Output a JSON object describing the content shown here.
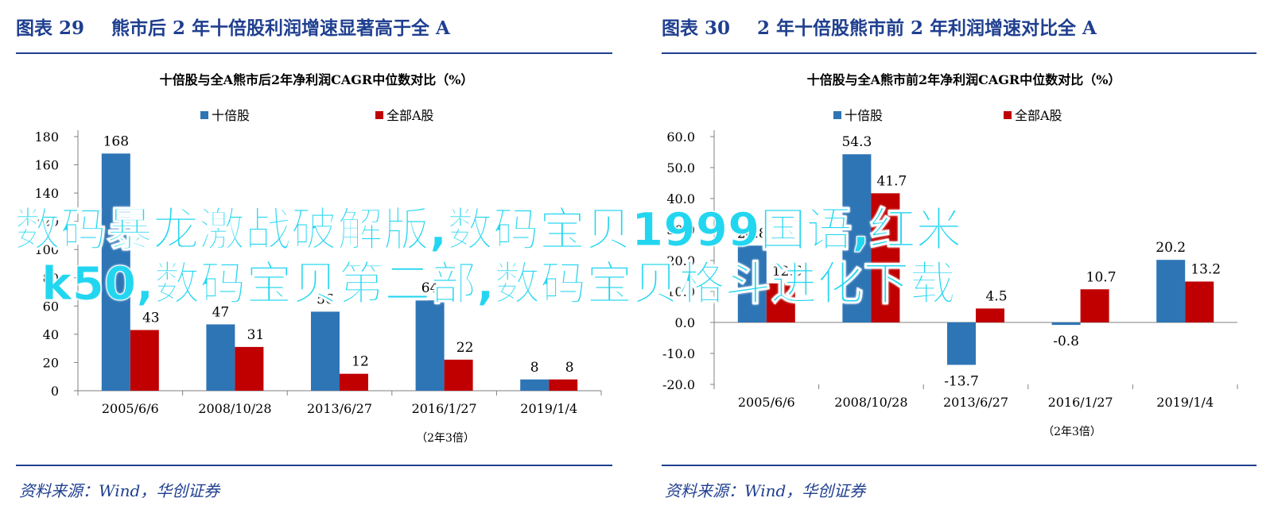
{
  "left": {
    "figure_num": "图表 29",
    "figure_title": "熊市后 2 年十倍股利润增速显著高于全 A",
    "source": "资料来源：Wind，华创证券"
  },
  "right": {
    "figure_num": "图表 30",
    "figure_title": "2 年十倍股熊市前 2 年利润增速对比全 A",
    "source": "资料来源：Wind，华创证券"
  },
  "overlay": {
    "line1": "数码暴龙激战破解版,数码宝贝1999国语,红米",
    "line2": "k50,数码宝贝第二部,数码宝贝格斗进化下载"
  },
  "colors": {
    "series1": "#2e75b6",
    "series2": "#c00000",
    "accent": "#1f3f8f",
    "overlay": "#23d6f0"
  },
  "chart_data": [
    {
      "type": "bar",
      "title": "十倍股与全A熊市后2年净利润CAGR中位数对比（%）",
      "categories": [
        "2005/6/6",
        "2008/10/28",
        "2013/6/27",
        "2016/1/27",
        "2019/1/4"
      ],
      "series": [
        {
          "name": "十倍股",
          "values": [
            168,
            47,
            56,
            64,
            8
          ],
          "labels": [
            "168",
            "47",
            "56",
            "64",
            "8"
          ]
        },
        {
          "name": "全部A股",
          "values": [
            43,
            31,
            12,
            22,
            8
          ],
          "labels": [
            "43",
            "31",
            "12",
            "22",
            "8"
          ]
        }
      ],
      "yticks": [
        "0",
        "20",
        "40",
        "60",
        "80",
        "100",
        "120",
        "140",
        "160",
        "180"
      ],
      "ylim": [
        0,
        180
      ],
      "note": "（2年3倍）",
      "legend": "top-center",
      "grid": false
    },
    {
      "type": "bar",
      "title": "十倍股与全A熊市前2年净利润CAGR中位数对比（%）",
      "categories": [
        "2005/6/6",
        "2008/10/28",
        "2013/6/27",
        "2016/1/27",
        "2019/1/4"
      ],
      "series": [
        {
          "name": "十倍股",
          "values": [
            24.8,
            54.3,
            -13.7,
            -0.8,
            20.2
          ],
          "labels": [
            "24.8",
            "54.3",
            "-13.7",
            "-0.8",
            "20.2"
          ]
        },
        {
          "name": "全部A股",
          "values": [
            12.6,
            41.7,
            4.5,
            10.7,
            13.2
          ],
          "labels": [
            "12.6",
            "41.7",
            "4.5",
            "10.7",
            "13.2"
          ]
        }
      ],
      "yticks": [
        "-20.0",
        "-10.0",
        "0.0",
        "10.0",
        "20.0",
        "30.0",
        "40.0",
        "50.0",
        "60.0"
      ],
      "ylim": [
        -20,
        60
      ],
      "note": "（2年3倍）",
      "legend": "top-center",
      "grid": false
    }
  ]
}
